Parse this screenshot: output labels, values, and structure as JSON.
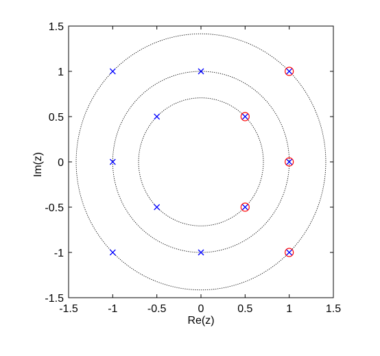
{
  "chart_data": {
    "type": "scatter",
    "title": "",
    "xlabel": "Re(z)",
    "ylabel": "Im(z)",
    "xlim": [
      -1.5,
      1.5
    ],
    "ylim": [
      -1.5,
      1.5
    ],
    "xticks": [
      -1.5,
      -1,
      -0.5,
      0,
      0.5,
      1,
      1.5
    ],
    "yticks": [
      -1.5,
      -1,
      -0.5,
      0,
      0.5,
      1,
      1.5
    ],
    "xtick_labels": [
      "-1.5",
      "-1",
      "-0.5",
      "0",
      "0.5",
      "1",
      "1.5"
    ],
    "ytick_labels": [
      "-1.5",
      "-1",
      "-0.5",
      "0",
      "0.5",
      "1",
      "1.5"
    ],
    "grid": false,
    "circles": [
      {
        "radius": 0.7071,
        "style": "dotted",
        "color": "#000000"
      },
      {
        "radius": 1.0,
        "style": "dotted",
        "color": "#000000"
      },
      {
        "radius": 1.4142,
        "style": "dotted",
        "color": "#000000"
      }
    ],
    "series": [
      {
        "marker": "x",
        "color": "#0000ff",
        "points": [
          [
            -1,
            1
          ],
          [
            0,
            1
          ],
          [
            1,
            1
          ],
          [
            -0.5,
            0.5
          ],
          [
            0.5,
            0.5
          ],
          [
            -1,
            0
          ],
          [
            1,
            0
          ],
          [
            -0.5,
            -0.5
          ],
          [
            0.5,
            -0.5
          ],
          [
            -1,
            -1
          ],
          [
            0,
            -1
          ],
          [
            1,
            -1
          ]
        ]
      },
      {
        "marker": "o",
        "color": "#ff0000",
        "points": [
          [
            1,
            1
          ],
          [
            0.5,
            0.5
          ],
          [
            1,
            0
          ],
          [
            0.5,
            -0.5
          ],
          [
            1,
            -1
          ]
        ]
      }
    ]
  }
}
